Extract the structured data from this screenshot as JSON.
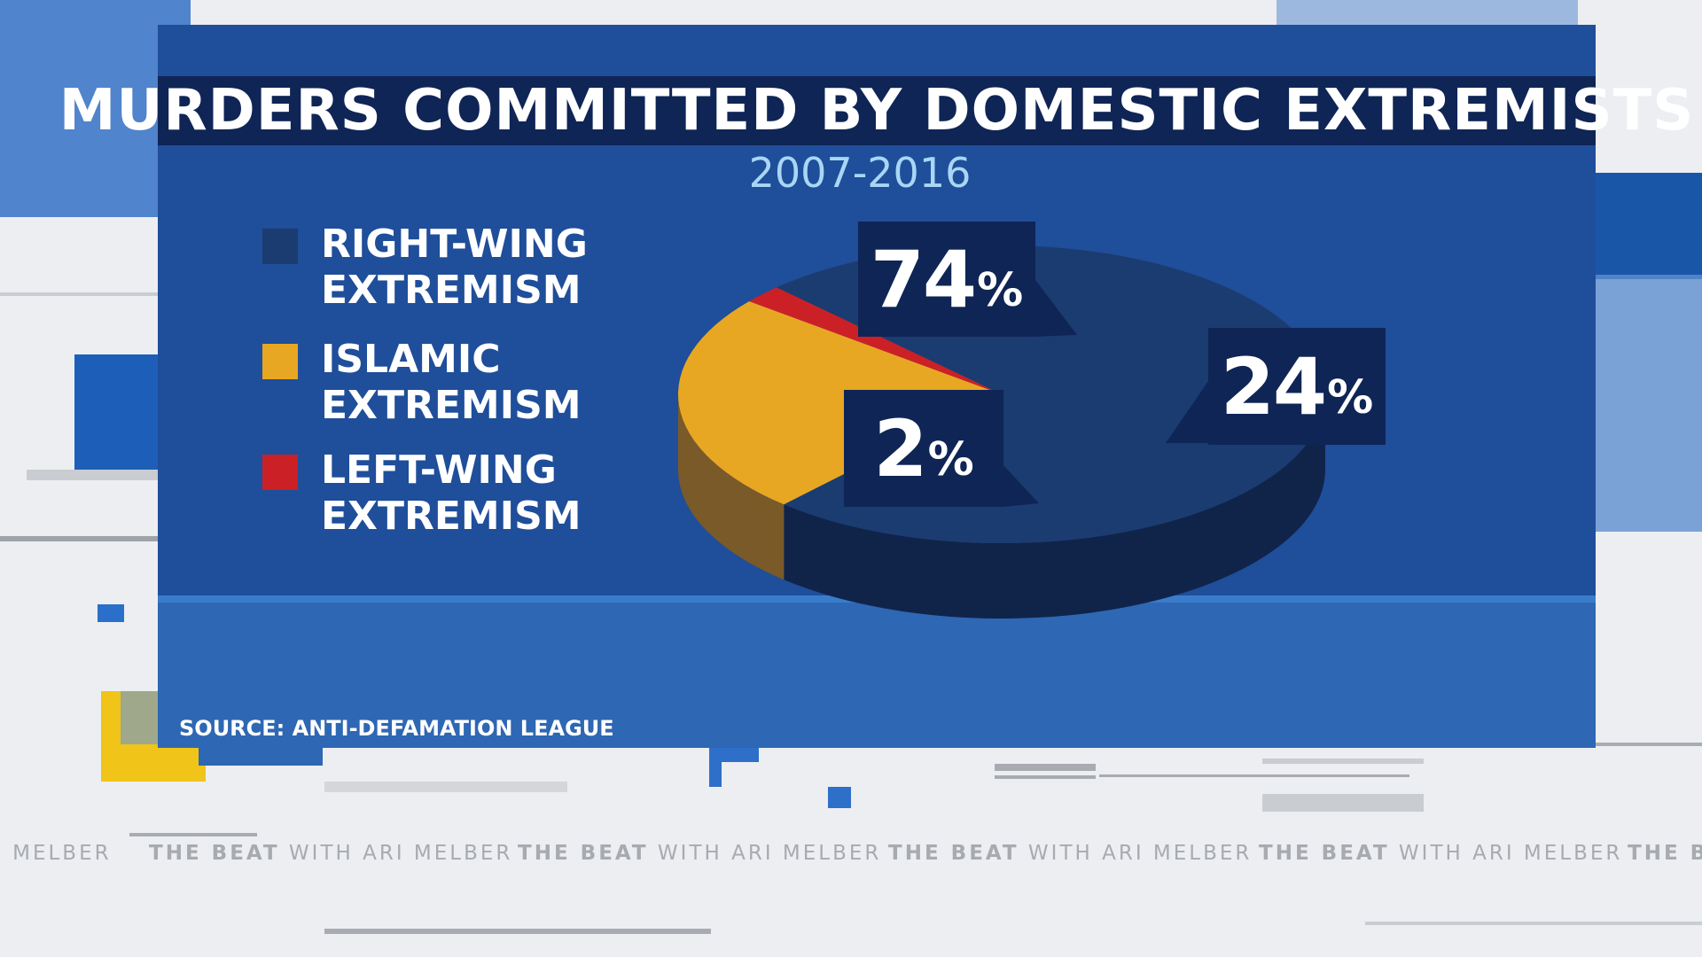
{
  "chart_data": {
    "type": "pie",
    "title": "MURDERS COMMITTED BY DOMESTIC EXTREMISTS",
    "subtitle": "2007-2016",
    "categories": [
      "RIGHT-WING EXTREMISM",
      "ISLAMIC EXTREMISM",
      "LEFT-WING EXTREMISM"
    ],
    "values": [
      74,
      24,
      2
    ],
    "value_labels": [
      "74",
      "24",
      "2"
    ],
    "unit": "%",
    "colors": [
      "#1b3c70",
      "#e8a722",
      "#cc2027"
    ],
    "side_colors": [
      "#10244a",
      "#7a5a28",
      "#6b1010"
    ],
    "legend_position": "left"
  },
  "legend": [
    {
      "line1": "RIGHT-WING",
      "line2": "EXTREMISM",
      "color": "#1b3c70"
    },
    {
      "line1": "ISLAMIC",
      "line2": "EXTREMISM",
      "color": "#e8a722"
    },
    {
      "line1": "LEFT-WING",
      "line2": "EXTREMISM",
      "color": "#cc2027"
    }
  ],
  "source": "SOURCE: ANTI-DEFAMATION LEAGUE",
  "ticker": {
    "items": [
      {
        "bold": "",
        "rest": "I MELBER"
      },
      {
        "bold": "THE BEAT",
        "rest": " WITH ARI MELBER"
      },
      {
        "bold": "THE BEAT",
        "rest": " WITH ARI MELBER"
      },
      {
        "bold": "THE BEAT",
        "rest": " WITH ARI MELBER"
      },
      {
        "bold": "THE BEAT",
        "rest": " WITH ARI MELBER"
      },
      {
        "bold": "THE B",
        "rest": ""
      }
    ]
  }
}
